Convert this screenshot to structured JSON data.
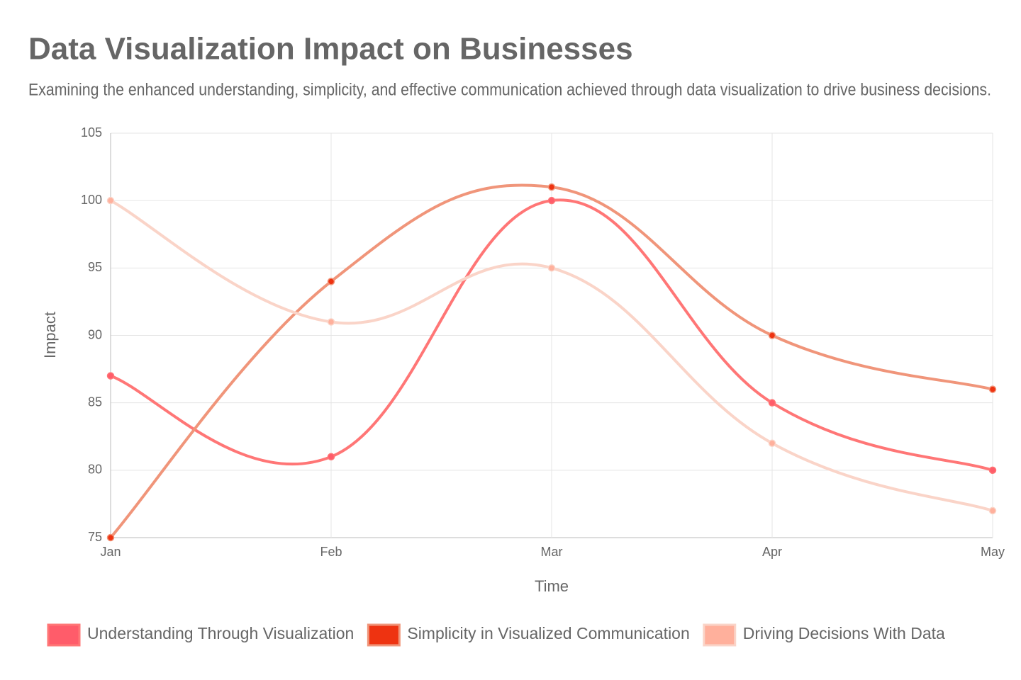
{
  "chart_data": {
    "type": "line",
    "title": "Data Visualization Impact on Businesses",
    "subtitle": "Examining the enhanced understanding, simplicity, and effective communication achieved through data visualization to drive business decisions.",
    "x_label": "Time",
    "y_label": "Impact",
    "categories": [
      "Jan",
      "Feb",
      "Mar",
      "Apr",
      "May"
    ],
    "series": [
      {
        "name": "Understanding Through Visualization",
        "color": "#ff7676",
        "point_color": "#ff5c6a",
        "values": [
          87,
          81,
          100,
          85,
          80
        ]
      },
      {
        "name": "Simplicity in Visualized Communication",
        "color": "#f0957a",
        "point_color": "#ee3311",
        "values": [
          75,
          94,
          101,
          90,
          86
        ]
      },
      {
        "name": "Driving Decisions With Data",
        "color": "#fad4c8",
        "point_color": "#ffb09c",
        "values": [
          100,
          91,
          95,
          82,
          77
        ]
      }
    ],
    "ylim": [
      75,
      105
    ],
    "yticks": [
      75,
      80,
      85,
      90,
      95,
      100,
      105
    ],
    "grid": true,
    "legend": "bottom"
  }
}
